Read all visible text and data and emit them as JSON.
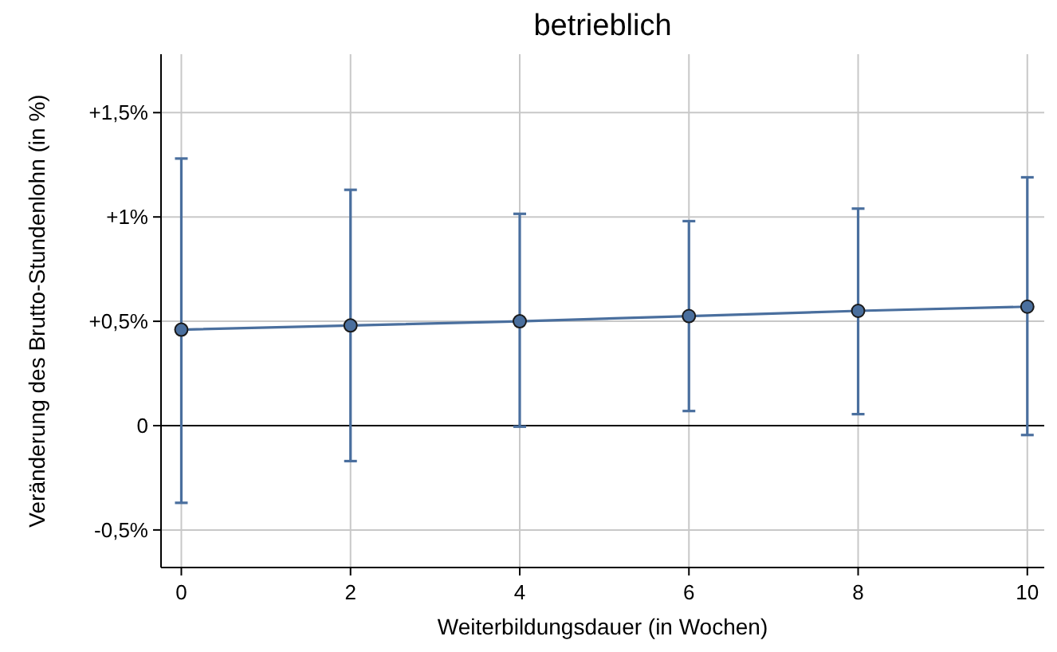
{
  "chart_data": {
    "type": "line",
    "title": "betrieblich",
    "xlabel": "Weiterbildungsdauer (in Wochen)",
    "ylabel": "Veränderung des Brutto-Stundenlohn (in %)",
    "x": [
      0,
      2,
      4,
      6,
      8,
      10
    ],
    "series": [
      {
        "color": "#4a6f9e",
        "values": [
          0.46,
          0.48,
          0.5,
          0.525,
          0.55,
          0.57
        ],
        "errors": [
          [
            -0.37,
            1.28
          ],
          [
            -0.17,
            1.13
          ],
          [
            -0.005,
            1.015
          ],
          [
            0.07,
            0.98
          ],
          [
            0.055,
            1.04
          ],
          [
            -0.045,
            1.19
          ]
        ]
      }
    ],
    "xlim": [
      -0.24,
      10.2
    ],
    "xticks": [
      0,
      2,
      4,
      6,
      8,
      10
    ],
    "ylim": [
      -0.68,
      1.78
    ],
    "yticks": [
      {
        "value": -0.5,
        "label": "-0,5%"
      },
      0,
      {
        "value": 0.5,
        "label": "+0,5%"
      },
      {
        "value": 1,
        "label": "+1%"
      },
      {
        "value": 1.5,
        "label": "+1,5%"
      }
    ],
    "ref_lines": [
      {
        "axis": "y",
        "value": 0,
        "color": "#000000"
      }
    ],
    "grid": true,
    "marker": "circle",
    "line_style": "solid"
  }
}
